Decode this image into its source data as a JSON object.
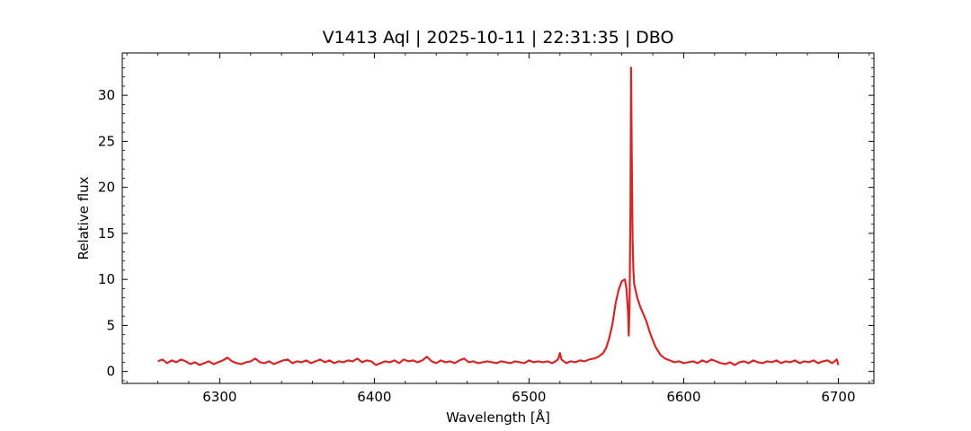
{
  "chart_data": {
    "type": "line",
    "title": "V1413 Aql | 2025-10-11 | 22:31:35 | DBO",
    "xlabel": "Wavelength [Å]",
    "ylabel": "Relative flux",
    "xlim": [
      6237,
      6723
    ],
    "ylim": [
      -1.3,
      34.6
    ],
    "x_ticks": [
      6300,
      6400,
      6500,
      6600,
      6700
    ],
    "x_ticks_minor_step": 20,
    "y_ticks": [
      0,
      5,
      10,
      15,
      20,
      25,
      30
    ],
    "y_ticks_minor_step": 1,
    "tick_direction": "in",
    "grid": false,
    "legend": "none",
    "color": "#d62728",
    "series": [
      {
        "x": [
          6260,
          6263,
          6266,
          6269,
          6272,
          6275,
          6278,
          6281,
          6284,
          6287,
          6290,
          6293,
          6296,
          6299,
          6302,
          6305,
          6308,
          6311,
          6314,
          6317,
          6320,
          6323,
          6326,
          6329,
          6332,
          6335,
          6338,
          6341,
          6344,
          6347,
          6350,
          6353,
          6356,
          6359,
          6362,
          6365,
          6368,
          6371,
          6374,
          6377,
          6380,
          6383,
          6386,
          6389,
          6392,
          6395,
          6398,
          6401,
          6404,
          6407,
          6410,
          6413,
          6416,
          6419,
          6422,
          6425,
          6428,
          6431,
          6434,
          6437,
          6440,
          6443,
          6446,
          6449,
          6452,
          6455,
          6458,
          6461,
          6464,
          6467,
          6470,
          6473,
          6476,
          6479,
          6482,
          6485,
          6488,
          6491,
          6494,
          6497,
          6500,
          6503,
          6506,
          6509,
          6512,
          6515,
          6518,
          6519,
          6520,
          6521,
          6524,
          6527,
          6530,
          6533,
          6536,
          6539,
          6542,
          6545,
          6548,
          6550,
          6552,
          6554,
          6556,
          6558,
          6560,
          6562,
          6563,
          6564,
          6564.5,
          6565,
          6565.6,
          6566,
          6566.4,
          6567,
          6567.5,
          6568,
          6570,
          6572,
          6574,
          6576,
          6578,
          6580,
          6582,
          6585,
          6588,
          6591,
          6594,
          6597,
          6600,
          6603,
          6606,
          6609,
          6612,
          6615,
          6618,
          6621,
          6624,
          6627,
          6630,
          6633,
          6636,
          6639,
          6642,
          6645,
          6648,
          6651,
          6654,
          6657,
          6660,
          6663,
          6666,
          6669,
          6672,
          6675,
          6678,
          6681,
          6684,
          6687,
          6690,
          6693,
          6696,
          6699,
          6700
        ],
        "y": [
          1.1,
          1.3,
          0.9,
          1.2,
          1.0,
          1.3,
          1.1,
          0.8,
          1.0,
          0.7,
          0.9,
          1.1,
          0.8,
          1.0,
          1.2,
          1.5,
          1.1,
          0.9,
          0.8,
          1.0,
          1.1,
          1.4,
          1.0,
          0.9,
          1.1,
          0.8,
          1.0,
          1.2,
          1.3,
          0.9,
          1.1,
          1.0,
          1.2,
          0.9,
          1.1,
          1.3,
          1.0,
          1.2,
          0.9,
          1.1,
          1.0,
          1.2,
          1.1,
          1.4,
          1.0,
          1.2,
          1.1,
          0.7,
          0.9,
          1.1,
          1.0,
          1.2,
          0.9,
          1.3,
          1.1,
          1.2,
          1.0,
          1.2,
          1.6,
          1.1,
          0.9,
          1.2,
          1.0,
          1.1,
          0.9,
          1.2,
          1.4,
          1.0,
          1.1,
          0.9,
          1.0,
          1.1,
          1.0,
          0.9,
          1.1,
          1.0,
          0.9,
          1.1,
          1.0,
          0.9,
          1.2,
          1.0,
          1.1,
          1.0,
          1.1,
          0.9,
          1.2,
          1.4,
          2.0,
          1.3,
          0.9,
          1.1,
          1.0,
          1.2,
          1.1,
          1.3,
          1.4,
          1.6,
          2.0,
          2.6,
          3.7,
          5.2,
          7.4,
          8.9,
          9.8,
          10.0,
          9.0,
          6.5,
          3.9,
          7.0,
          18.0,
          33.0,
          24.0,
          14.0,
          11.0,
          9.5,
          8.0,
          7.0,
          6.2,
          5.4,
          4.3,
          3.4,
          2.6,
          1.8,
          1.4,
          1.2,
          1.0,
          1.1,
          0.9,
          1.0,
          1.1,
          0.9,
          1.2,
          1.0,
          1.3,
          1.1,
          0.9,
          0.8,
          1.0,
          0.7,
          1.0,
          1.1,
          0.9,
          1.2,
          1.0,
          0.9,
          1.1,
          1.0,
          1.2,
          0.9,
          1.1,
          1.0,
          1.2,
          0.9,
          1.1,
          1.0,
          1.2,
          0.9,
          1.1,
          1.2,
          0.9,
          1.3,
          0.7
        ]
      }
    ]
  }
}
